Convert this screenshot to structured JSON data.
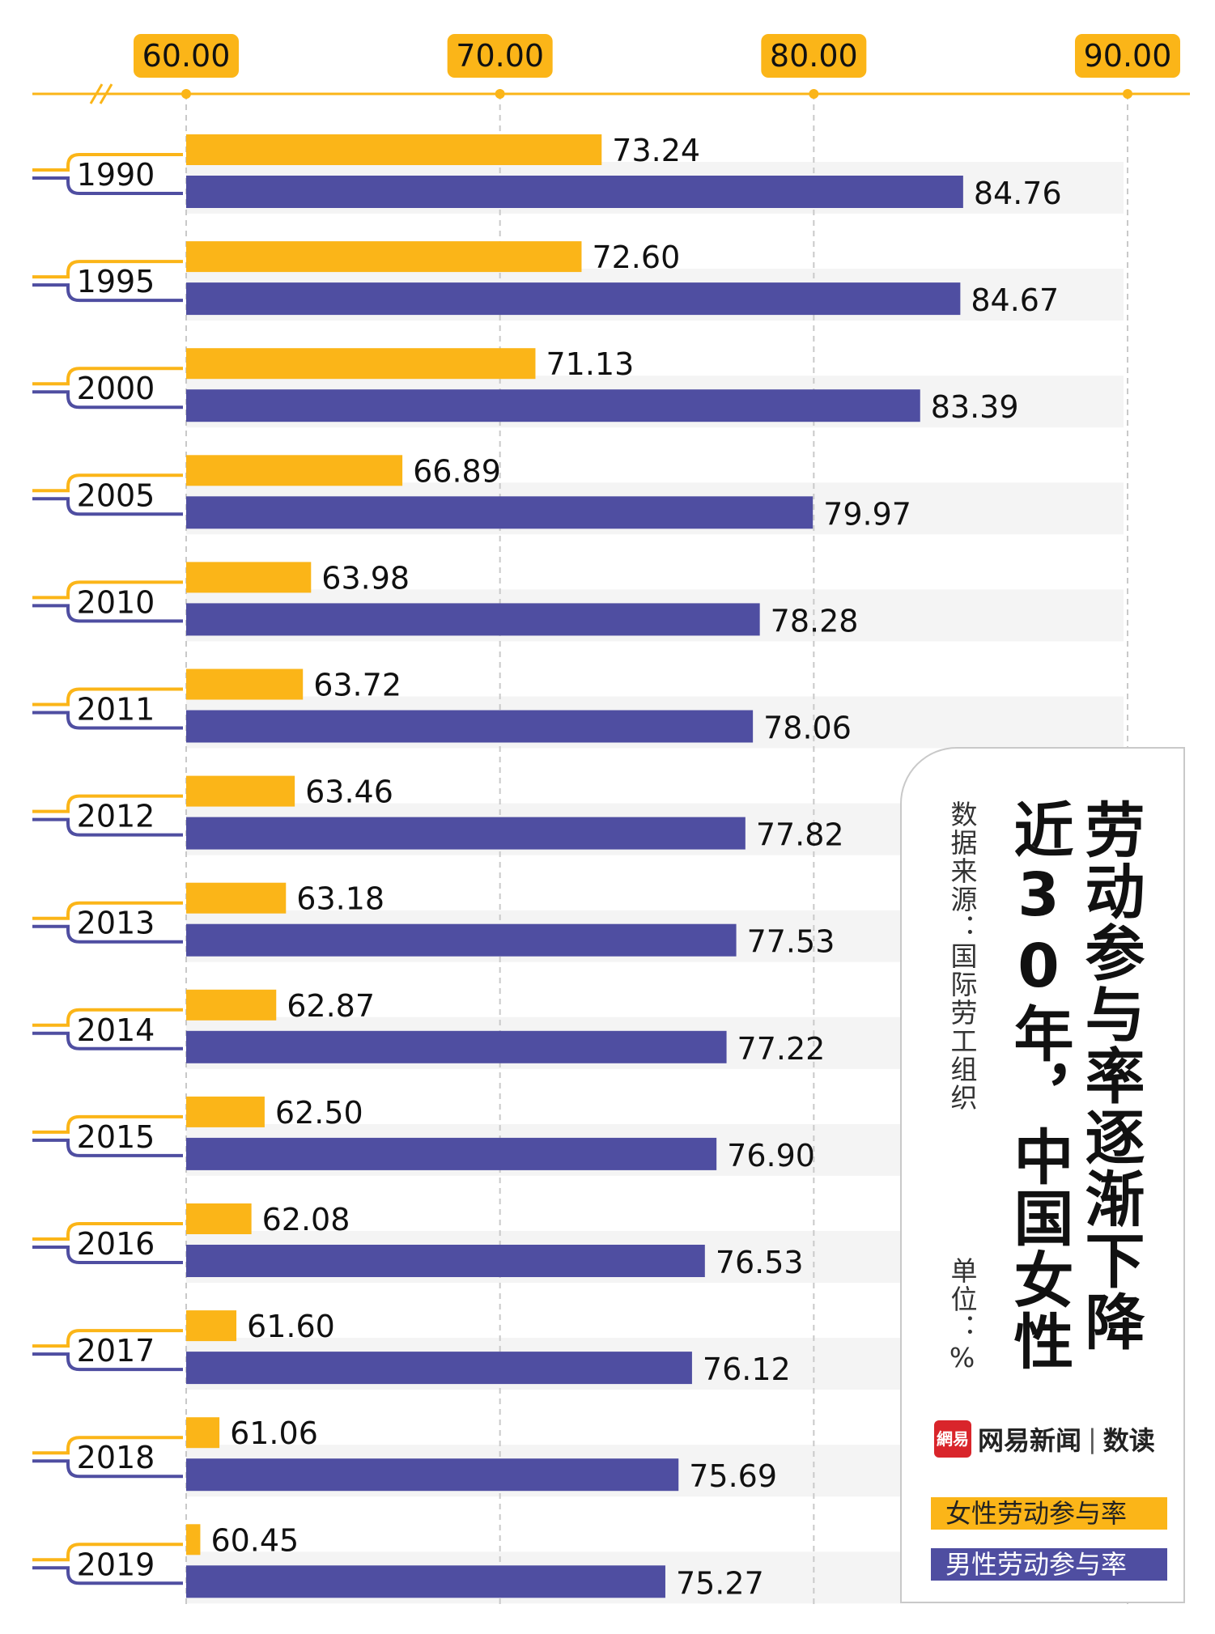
{
  "chart_data": {
    "type": "bar",
    "orientation": "horizontal",
    "title": "劳动参与率逐渐下降",
    "subtitle": "近30年，中国女性",
    "source": "数据来源：国际劳工组织",
    "unit": "单位：%",
    "categories": [
      "1990",
      "1995",
      "2000",
      "2005",
      "2010",
      "2011",
      "2012",
      "2013",
      "2014",
      "2015",
      "2016",
      "2017",
      "2018",
      "2019"
    ],
    "series": [
      {
        "name": "女性劳动参与率",
        "color": "#fbb518",
        "values": [
          73.24,
          72.6,
          71.13,
          66.89,
          63.98,
          63.72,
          63.46,
          63.18,
          62.87,
          62.5,
          62.08,
          61.6,
          61.06,
          60.45
        ],
        "labels": [
          "73.24",
          "72.60",
          "71.13",
          "66.89",
          "63.98",
          "63.72",
          "63.46",
          "63.18",
          "62.87",
          "62.50",
          "62.08",
          "61.60",
          "61.06",
          "60.45"
        ]
      },
      {
        "name": "男性劳动参与率",
        "color": "#4f4ea1",
        "values": [
          84.76,
          84.67,
          83.39,
          79.97,
          78.28,
          78.06,
          77.82,
          77.53,
          77.22,
          76.9,
          76.53,
          76.12,
          75.69,
          75.27
        ],
        "labels": [
          "84.76",
          "84.67",
          "83.39",
          "79.97",
          "78.28",
          "78.06",
          "77.82",
          "77.53",
          "77.22",
          "76.90",
          "76.53",
          "76.12",
          "75.69",
          "75.27"
        ]
      }
    ],
    "xlim": [
      60,
      90
    ],
    "x_ticks": [
      "60.00",
      "70.00",
      "80.00",
      "90.00"
    ],
    "axis_break": true,
    "grid": true,
    "legend_position": "bottom-right"
  },
  "brand": {
    "logo": "網易",
    "name": "网易新闻",
    "separator": "|",
    "sub": "数读"
  },
  "colors": {
    "axis": "#fbb518",
    "female": "#fbb518",
    "male": "#4f4ea1",
    "stripe": "#f4f4f4",
    "grid": "#c9c9c9"
  }
}
